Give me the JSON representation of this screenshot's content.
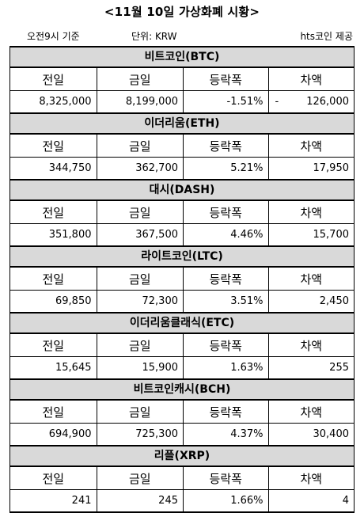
{
  "title": "<11월 10일 가상화폐 시황>",
  "basis": "오전9시 기준",
  "unit": "단위: KRW",
  "source": "hts코인 제공",
  "headers": {
    "prev": "전일",
    "today": "금일",
    "change": "등락폭",
    "diff": "차액"
  },
  "coins": [
    {
      "name": "비트코인(BTC)",
      "prev": "8,325,000",
      "today": "8,199,000",
      "change": "-1.51%",
      "diff_sign": "-",
      "diff": "126,000"
    },
    {
      "name": "이더리움(ETH)",
      "prev": "344,750",
      "today": "362,700",
      "change": "5.21%",
      "diff_sign": "",
      "diff": "17,950"
    },
    {
      "name": "대시(DASH)",
      "prev": "351,800",
      "today": "367,500",
      "change": "4.46%",
      "diff_sign": "",
      "diff": "15,700"
    },
    {
      "name": "라이트코인(LTC)",
      "prev": "69,850",
      "today": "72,300",
      "change": "3.51%",
      "diff_sign": "",
      "diff": "2,450"
    },
    {
      "name": "이더리움클래식(ETC)",
      "prev": "15,645",
      "today": "15,900",
      "change": "1.63%",
      "diff_sign": "",
      "diff": "255"
    },
    {
      "name": "비트코인캐시(BCH)",
      "prev": "694,900",
      "today": "725,300",
      "change": "4.37%",
      "diff_sign": "",
      "diff": "30,400"
    },
    {
      "name": "리플(XRP)",
      "prev": "241",
      "today": "245",
      "change": "1.66%",
      "diff_sign": "",
      "diff": "4"
    }
  ]
}
